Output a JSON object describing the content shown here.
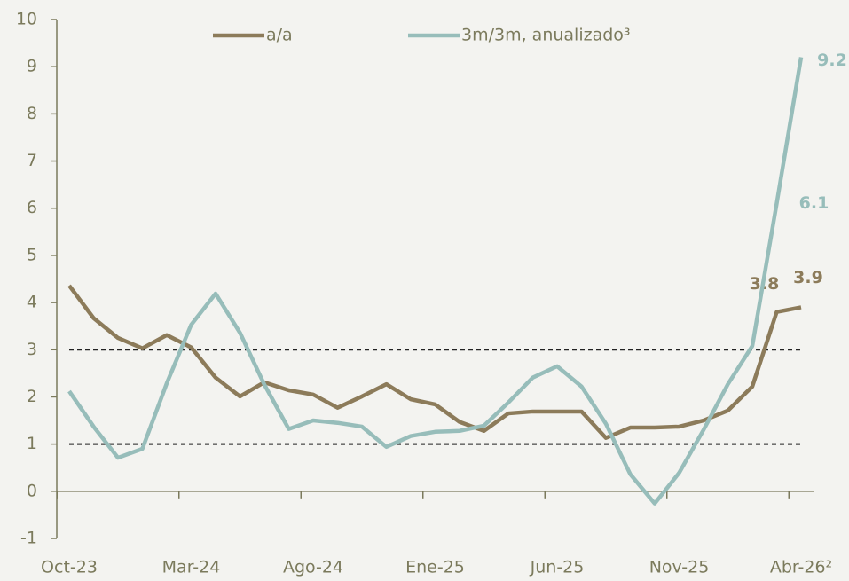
{
  "chart_data": {
    "type": "line",
    "categories": [
      "Oct-23",
      null,
      null,
      null,
      null,
      "Mar-24",
      null,
      null,
      null,
      null,
      "Ago-24",
      null,
      null,
      null,
      null,
      "Ene-25",
      null,
      null,
      null,
      null,
      "Jun-25",
      null,
      null,
      null,
      null,
      "Nov-25",
      null,
      null,
      null,
      null,
      "Abr-26²"
    ],
    "series": [
      {
        "name": "a/a",
        "color": "#8c7b5a",
        "values": [
          4.36,
          3.67,
          3.25,
          3.03,
          3.31,
          3.05,
          2.41,
          2.01,
          2.31,
          2.14,
          2.05,
          1.77,
          2.01,
          2.27,
          1.95,
          1.84,
          1.47,
          1.28,
          1.65,
          1.69,
          1.69,
          1.69,
          1.13,
          1.35,
          1.35,
          1.37,
          1.5,
          1.71,
          2.22,
          3.8,
          3.9
        ],
        "value_labels": [
          null,
          null,
          null,
          null,
          null,
          null,
          null,
          null,
          null,
          null,
          null,
          null,
          null,
          null,
          null,
          null,
          null,
          null,
          null,
          null,
          null,
          null,
          null,
          null,
          null,
          null,
          null,
          null,
          null,
          "3.8",
          "3.9"
        ]
      },
      {
        "name": "3m/3m, anualizado³",
        "color": "#97bdba",
        "values": [
          2.12,
          1.37,
          0.71,
          0.9,
          2.29,
          3.53,
          4.19,
          3.36,
          2.26,
          1.32,
          1.5,
          1.45,
          1.37,
          0.94,
          1.17,
          1.26,
          1.28,
          1.39,
          1.88,
          2.41,
          2.65,
          2.22,
          1.43,
          0.36,
          -0.26,
          0.39,
          1.3,
          2.27,
          3.08,
          6.1,
          9.2
        ],
        "value_labels": [
          null,
          null,
          null,
          null,
          null,
          null,
          null,
          null,
          null,
          null,
          null,
          null,
          null,
          null,
          null,
          null,
          null,
          null,
          null,
          null,
          null,
          null,
          null,
          null,
          null,
          null,
          null,
          null,
          null,
          "6.1",
          "9.2"
        ]
      }
    ],
    "ylim": [
      -1,
      10
    ],
    "yticks": [
      -1,
      0,
      1,
      2,
      3,
      4,
      5,
      6,
      7,
      8,
      9,
      10
    ],
    "reference_lines": [
      1,
      3
    ],
    "legend": "top"
  }
}
